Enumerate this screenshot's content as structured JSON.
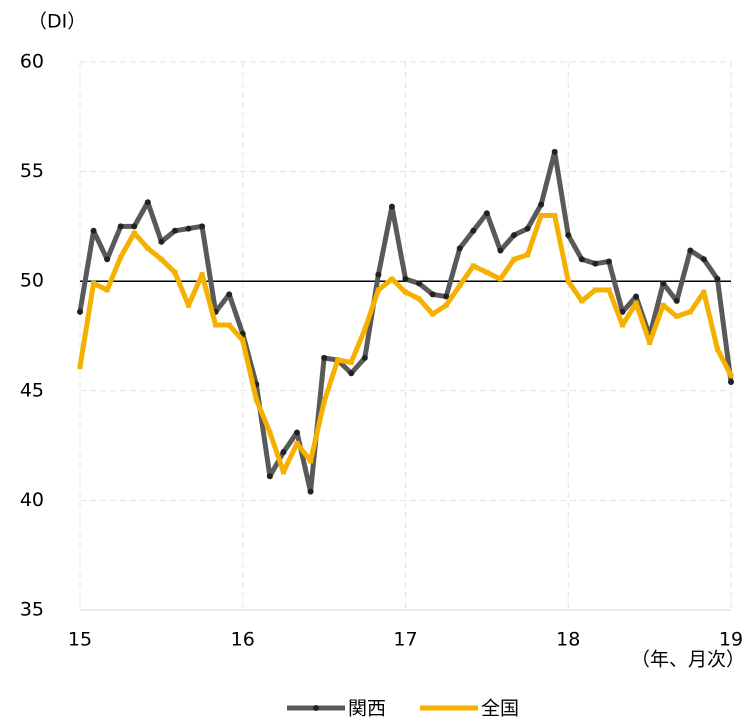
{
  "chart_data": {
    "type": "line",
    "y_label": "（DI）",
    "x_label": "（年、月次）",
    "categories": [
      "15",
      null,
      null,
      null,
      null,
      null,
      null,
      null,
      null,
      null,
      null,
      null,
      "16",
      null,
      null,
      null,
      null,
      null,
      null,
      null,
      null,
      null,
      null,
      null,
      "17",
      null,
      null,
      null,
      null,
      null,
      null,
      null,
      null,
      null,
      null,
      null,
      "18",
      null,
      null,
      null,
      null,
      null,
      null,
      null,
      null,
      null,
      null,
      null,
      "19"
    ],
    "series": [
      {
        "name": "関西",
        "color": "#595959",
        "marker": "circle",
        "values": [
          48.6,
          52.3,
          51.0,
          52.5,
          52.5,
          53.6,
          51.8,
          52.3,
          52.4,
          52.5,
          48.6,
          49.4,
          47.6,
          45.3,
          41.1,
          42.2,
          43.1,
          40.4,
          46.5,
          46.4,
          45.8,
          46.5,
          50.3,
          53.4,
          50.1,
          49.9,
          49.4,
          49.3,
          51.5,
          52.3,
          53.1,
          51.4,
          52.1,
          52.4,
          53.5,
          55.9,
          52.1,
          51.0,
          50.8,
          50.9,
          48.6,
          49.3,
          47.5,
          49.9,
          49.1,
          51.4,
          51.0,
          50.1,
          45.4
        ]
      },
      {
        "name": "全国",
        "color": "#f5b000",
        "marker": "square",
        "values": [
          46.1,
          49.9,
          49.6,
          51.1,
          52.2,
          51.5,
          51.0,
          50.4,
          48.9,
          50.3,
          48.0,
          48.0,
          47.3,
          44.6,
          43.1,
          41.3,
          42.6,
          41.8,
          44.5,
          46.4,
          46.3,
          47.8,
          49.6,
          50.1,
          49.5,
          49.2,
          48.5,
          48.9,
          49.8,
          50.7,
          50.4,
          50.1,
          51.0,
          51.2,
          53.0,
          53.0,
          50.0,
          49.1,
          49.6,
          49.6,
          48.0,
          49.0,
          47.2,
          48.9,
          48.4,
          48.6,
          49.5,
          46.9,
          45.7
        ]
      }
    ],
    "ylim": [
      35,
      60
    ],
    "yticks": [
      35,
      40,
      45,
      50,
      55,
      60
    ],
    "reference_line": 50,
    "grid": true
  }
}
